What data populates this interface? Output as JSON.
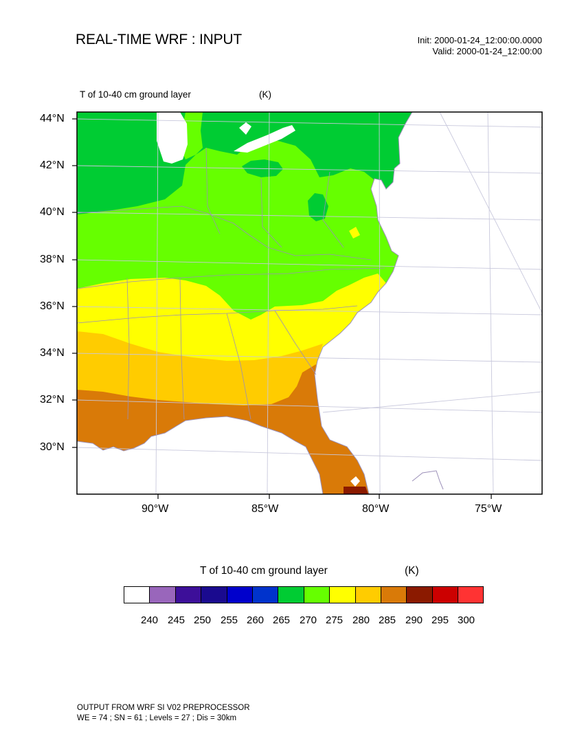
{
  "header": {
    "title": "REAL-TIME WRF : INPUT",
    "init": "Init: 2000-01-24_12:00:00.0000",
    "valid": "Valid: 2000-01-24_12:00:00"
  },
  "field": {
    "name": "T of 10-40 cm ground layer",
    "units": "(K)"
  },
  "map": {
    "lat_labels": [
      "44°N",
      "42°N",
      "40°N",
      "38°N",
      "36°N",
      "34°N",
      "32°N",
      "30°N"
    ],
    "lon_labels": [
      "90°W",
      "85°W",
      "80°W",
      "75°W"
    ]
  },
  "colorbar": {
    "title": "T of 10-40 cm ground layer",
    "units": "(K)",
    "colors": [
      "#ffffff",
      "#9966bb",
      "#3d0f99",
      "#1a0a8f",
      "#0000cc",
      "#0033cc",
      "#00cc33",
      "#66ff00",
      "#ffff00",
      "#ffcc00",
      "#d97a08",
      "#8b1a00",
      "#cc0000",
      "#ff3333"
    ],
    "ticks": [
      "240",
      "245",
      "250",
      "255",
      "260",
      "265",
      "270",
      "275",
      "280",
      "285",
      "290",
      "295",
      "300"
    ]
  },
  "footer": {
    "line1": "OUTPUT FROM WRF SI V02 PREPROCESSOR",
    "line2": "WE = 74 ; SN = 61 ; Levels = 27 ; Dis = 30km"
  }
}
